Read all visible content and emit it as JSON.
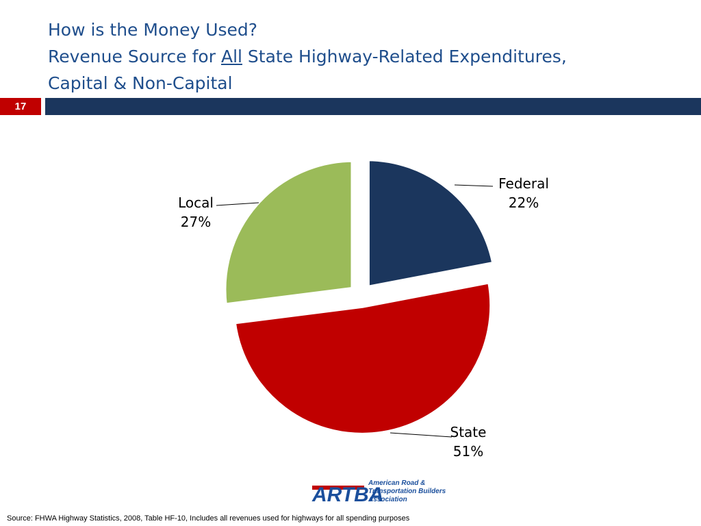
{
  "slide": {
    "title_line1": "How is the Money Used?",
    "title_line2_pre": "Revenue Source for ",
    "title_line2_underlined": "All",
    "title_line2_post": " State Highway-Related Expenditures,",
    "title_line3": "Capital & Non-Capital",
    "slide_number": "17",
    "accent_red": "#c00000",
    "band_navy": "#1b365d"
  },
  "chart_data": {
    "type": "pie",
    "exploded": true,
    "slices": [
      {
        "category": "Federal",
        "value": 22,
        "label": "22%",
        "color": "#1b365d"
      },
      {
        "category": "State",
        "value": 51,
        "label": "51%",
        "color": "#c00000"
      },
      {
        "category": "Local",
        "value": 27,
        "label": "27%",
        "color": "#9bbb59"
      }
    ]
  },
  "logo": {
    "acronym": "ARTBA",
    "line1": "American Road &",
    "line2": "Transportation Builders",
    "line3": "Association"
  },
  "source": "Source: FHWA Highway Statistics, 2008, Table HF-10, Includes all revenues used for highways for all spending purposes"
}
